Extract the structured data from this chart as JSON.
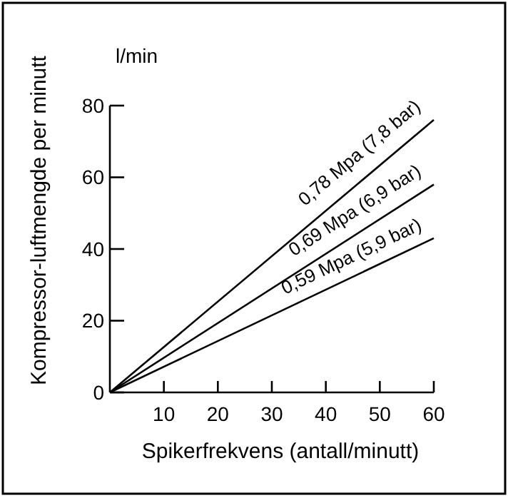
{
  "chart_data": {
    "type": "line",
    "xlabel": "Spikerfrekvens (antall/minutt)",
    "ylabel": "Kompressor-luftmengde per minutt",
    "annotations": [
      "l/min"
    ],
    "x": [
      0,
      60
    ],
    "xlim": [
      0,
      60
    ],
    "xticks": [
      10,
      20,
      30,
      40,
      50,
      60
    ],
    "ylim": [
      0,
      80
    ],
    "yticks": [
      0,
      20,
      40,
      60,
      80
    ],
    "grid": false,
    "marker": "none",
    "line_style": "solid",
    "series": [
      {
        "name": "0,78 Mpa (7,8 bar)",
        "color": "#000000",
        "values": [
          0,
          76
        ]
      },
      {
        "name": "0,69 Mpa (6,9 bar)",
        "color": "#000000",
        "values": [
          0,
          58
        ]
      },
      {
        "name": "0,59 Mpa (5,9 bar)",
        "color": "#000000",
        "values": [
          0,
          43
        ]
      }
    ]
  }
}
